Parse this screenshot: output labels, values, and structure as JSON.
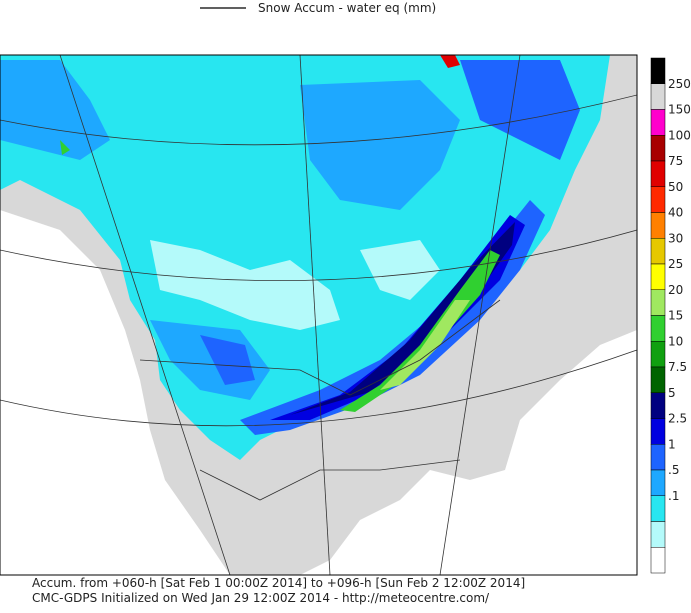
{
  "header": {
    "title": "Snow Accum - water eq (mm)"
  },
  "legend": {
    "colors": [
      "#000000",
      "#d8d8d8",
      "#ff00cc",
      "#a80000",
      "#e00000",
      "#ff2a00",
      "#ff8000",
      "#e6c800",
      "#ffff00",
      "#a0e860",
      "#30d030",
      "#10a010",
      "#006400",
      "#000080",
      "#0000e0",
      "#1e64ff",
      "#1ea8ff",
      "#28e6f0",
      "#b4fafa",
      "#ffffff"
    ],
    "labels": [
      "250",
      "150",
      "100",
      "75",
      "50",
      "40",
      "30",
      "25",
      "20",
      "15",
      "10",
      "7.5",
      "5",
      "2.5",
      "1",
      ".5",
      ".1"
    ]
  },
  "footer": {
    "line1": "Accum. from +060-h [Sat Feb 1 00:00Z 2014] to +096-h [Sun Feb 2 12:00Z 2014]",
    "line2": "CMC-GDPS Initialized on Wed Jan 29 12:00Z 2014 - http://meteocentre.com/"
  }
}
